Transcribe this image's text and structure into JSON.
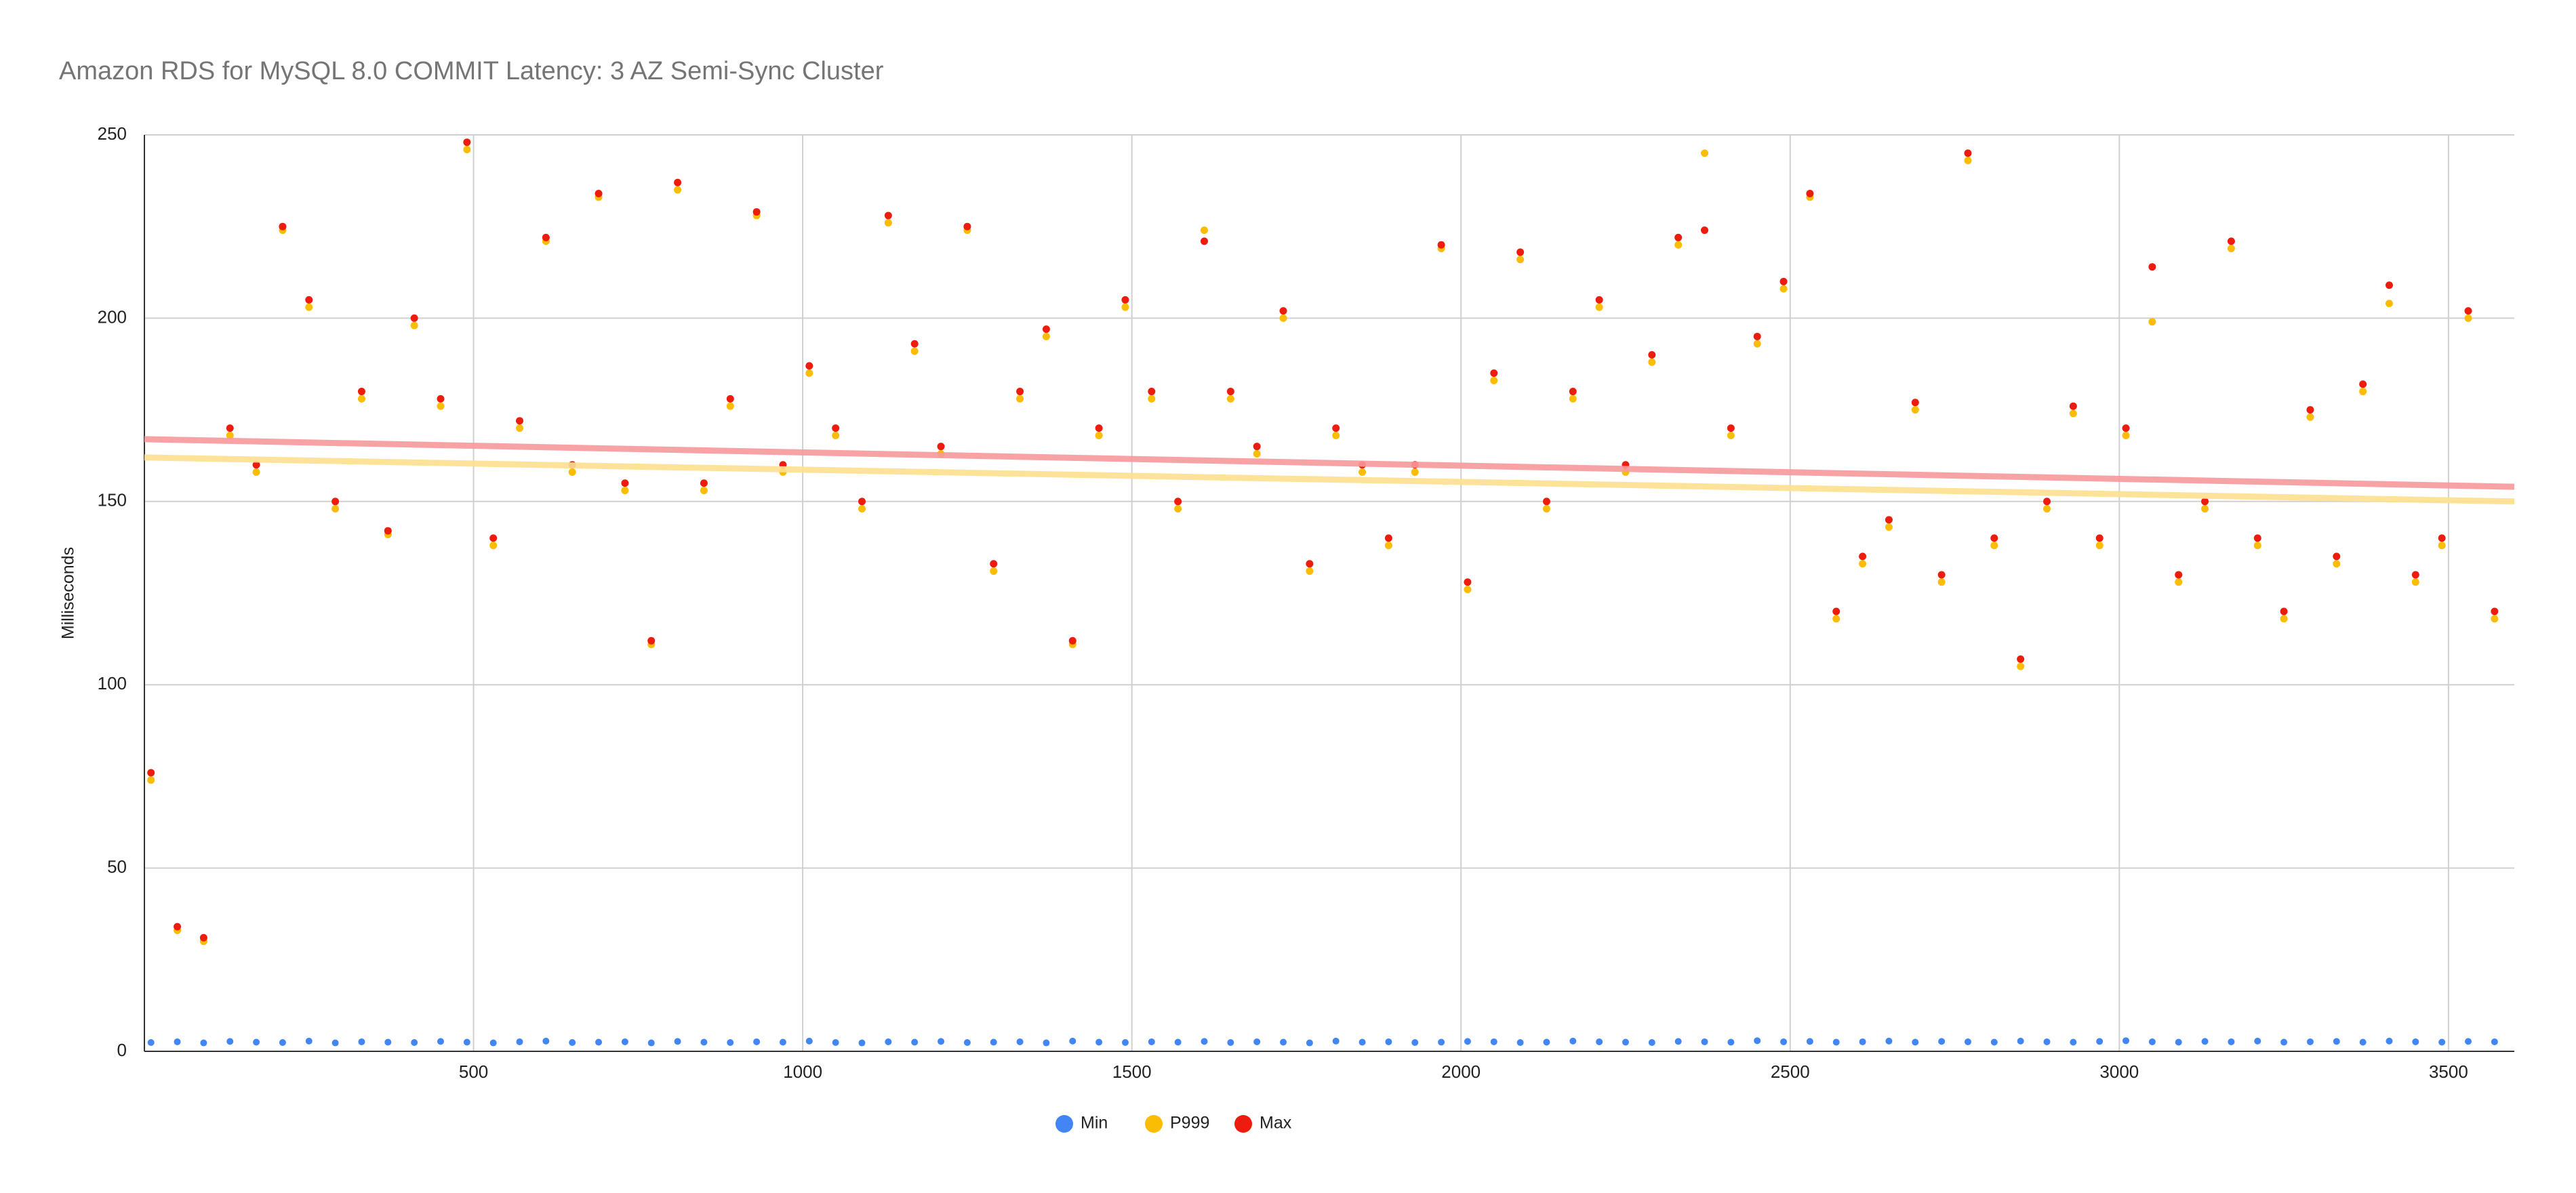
{
  "chart_data": {
    "type": "scatter",
    "title": "Amazon RDS for MySQL 8.0 COMMIT Latency: 3 AZ Semi-Sync Cluster",
    "y_label": "Milliseconds",
    "xlim": [
      0,
      3600
    ],
    "xticks": [
      500,
      1000,
      1500,
      2000,
      2500,
      3000,
      3500
    ],
    "ylim": [
      0,
      250
    ],
    "yticks": [
      0,
      50,
      100,
      150,
      200,
      250
    ],
    "grid": true,
    "legend": "bottom",
    "x": [
      10,
      50,
      90,
      130,
      170,
      210,
      250,
      290,
      330,
      370,
      410,
      450,
      490,
      530,
      570,
      610,
      650,
      690,
      730,
      770,
      810,
      850,
      890,
      930,
      970,
      1010,
      1050,
      1090,
      1130,
      1170,
      1210,
      1250,
      1290,
      1330,
      1370,
      1410,
      1450,
      1490,
      1530,
      1570,
      1610,
      1650,
      1690,
      1730,
      1770,
      1810,
      1850,
      1890,
      1930,
      1970,
      2010,
      2050,
      2090,
      2130,
      2170,
      2210,
      2250,
      2290,
      2330,
      2370,
      2410,
      2450,
      2490,
      2530,
      2570,
      2610,
      2650,
      2690,
      2730,
      2770,
      2810,
      2850,
      2890,
      2930,
      2970,
      3010,
      3050,
      3090,
      3130,
      3170,
      3210,
      3250,
      3290,
      3330,
      3370,
      3410,
      3450,
      3490,
      3530,
      3570
    ],
    "series": [
      {
        "name": "Min",
        "color": "#4285f4",
        "values": [
          2.4,
          2.6,
          2.3,
          2.7,
          2.5,
          2.4,
          2.8,
          2.3,
          2.6,
          2.5,
          2.4,
          2.7,
          2.5,
          2.3,
          2.6,
          2.8,
          2.4,
          2.5,
          2.6,
          2.3,
          2.7,
          2.5,
          2.4,
          2.6,
          2.5,
          2.8,
          2.4,
          2.3,
          2.6,
          2.5,
          2.7,
          2.4,
          2.5,
          2.6,
          2.3,
          2.8,
          2.5,
          2.4,
          2.6,
          2.5,
          2.7,
          2.4,
          2.6,
          2.5,
          2.3,
          2.8,
          2.5,
          2.6,
          2.4,
          2.5,
          2.7,
          2.6,
          2.4,
          2.5,
          2.8,
          2.6,
          2.5,
          2.4,
          2.7,
          2.6,
          2.5,
          2.9,
          2.6,
          2.7,
          2.5,
          2.6,
          2.8,
          2.5,
          2.7,
          2.6,
          2.5,
          2.8,
          2.6,
          2.5,
          2.7,
          2.9,
          2.6,
          2.5,
          2.7,
          2.6,
          2.8,
          2.5,
          2.6,
          2.7,
          2.5,
          2.8,
          2.6,
          2.5,
          2.7,
          2.6
        ]
      },
      {
        "name": "P999",
        "color": "#fbbc04",
        "values": [
          74,
          33,
          30,
          168,
          158,
          224,
          203,
          148,
          178,
          141,
          198,
          176,
          246,
          138,
          170,
          221,
          158,
          233,
          153,
          111,
          235,
          153,
          176,
          228,
          158,
          185,
          168,
          148,
          226,
          191,
          163,
          224,
          131,
          178,
          195,
          111,
          168,
          203,
          178,
          148,
          224,
          178,
          163,
          200,
          131,
          168,
          158,
          138,
          158,
          219,
          126,
          183,
          216,
          148,
          178,
          203,
          158,
          188,
          220,
          245,
          168,
          193,
          208,
          233,
          118,
          133,
          143,
          175,
          128,
          243,
          138,
          105,
          148,
          174,
          138,
          168,
          199,
          128,
          148,
          219,
          138,
          118,
          173,
          133,
          180,
          204,
          128,
          138,
          200,
          118
        ]
      },
      {
        "name": "Max",
        "color": "#ee1c0e",
        "values": [
          76,
          34,
          31,
          170,
          160,
          225,
          205,
          150,
          180,
          142,
          200,
          178,
          248,
          140,
          172,
          222,
          160,
          234,
          155,
          112,
          237,
          155,
          178,
          229,
          160,
          187,
          170,
          150,
          228,
          193,
          165,
          225,
          133,
          180,
          197,
          112,
          170,
          205,
          180,
          150,
          221,
          180,
          165,
          202,
          133,
          170,
          160,
          140,
          160,
          220,
          128,
          185,
          218,
          150,
          180,
          205,
          160,
          190,
          222,
          224,
          170,
          195,
          210,
          234,
          120,
          135,
          145,
          177,
          130,
          245,
          140,
          107,
          150,
          176,
          140,
          170,
          214,
          130,
          150,
          221,
          140,
          120,
          175,
          135,
          182,
          209,
          130,
          140,
          202,
          120
        ]
      }
    ],
    "trendlines": [
      {
        "color": "#fde08f",
        "x": [
          0,
          3600
        ],
        "values": [
          162,
          150
        ]
      },
      {
        "color": "#f6999b",
        "x": [
          0,
          3600
        ],
        "values": [
          167,
          154
        ]
      }
    ]
  }
}
